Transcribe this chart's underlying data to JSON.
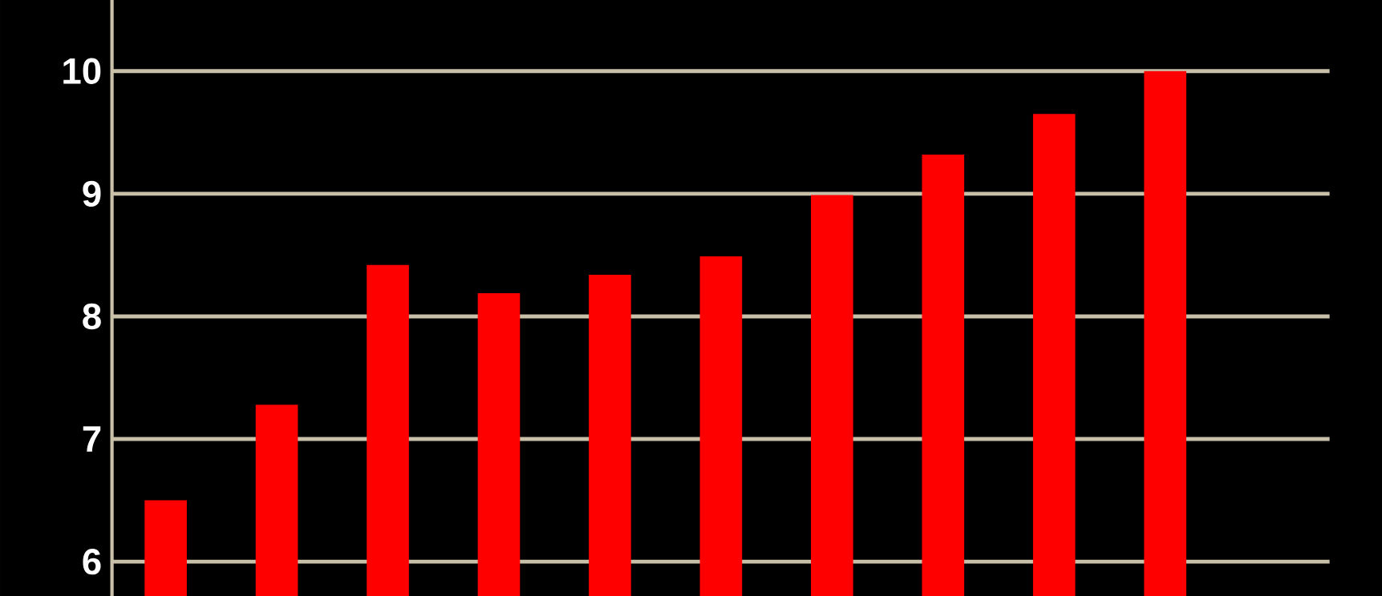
{
  "chart_data": {
    "type": "bar",
    "categories": [
      null,
      null,
      null,
      null,
      null,
      null,
      null,
      null,
      null,
      null
    ],
    "values": [
      6.5,
      7.28,
      8.42,
      8.19,
      8.34,
      8.49,
      8.99,
      9.32,
      9.65,
      10.0
    ],
    "color": "#ff0000",
    "ylim": [
      5.72,
      10.58
    ],
    "yticks": [
      6,
      7,
      8,
      9,
      10
    ],
    "grid": "y"
  }
}
